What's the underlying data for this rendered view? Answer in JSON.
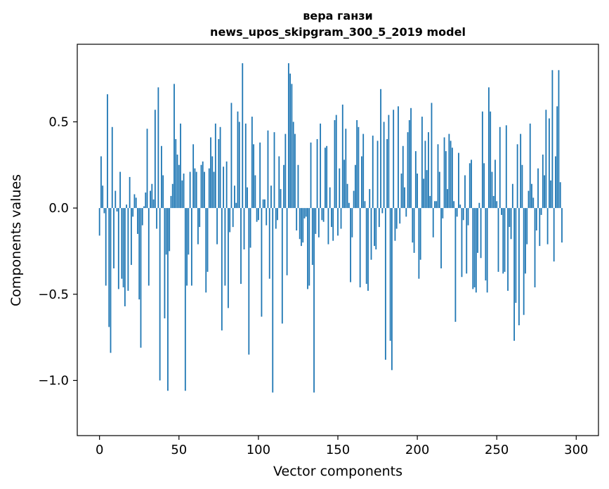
{
  "chart_data": {
    "type": "bar",
    "title_line1": "вера ганзи",
    "title_line2": "news_upos_skipgram_300_5_2019 model",
    "xlabel": "Vector components",
    "ylabel": "Components values",
    "xlim": [
      -14,
      314
    ],
    "ylim": [
      -1.32,
      0.95
    ],
    "xticks": [
      0,
      50,
      100,
      150,
      200,
      250,
      300
    ],
    "xtick_labels": [
      "0",
      "50",
      "100",
      "150",
      "200",
      "250",
      "300"
    ],
    "yticks": [
      -1.0,
      -0.5,
      0.0,
      0.5
    ],
    "ytick_labels": [
      "−1.0",
      "−0.5",
      "0.0",
      "0.5"
    ],
    "bar_color": "#1f77b4",
    "values": [
      -0.16,
      0.3,
      0.13,
      -0.03,
      -0.45,
      0.66,
      -0.69,
      -0.84,
      0.47,
      -0.35,
      0.1,
      -0.02,
      -0.47,
      0.21,
      -0.41,
      -0.46,
      -0.57,
      0.02,
      -0.48,
      0.18,
      -0.33,
      -0.05,
      0.08,
      0.06,
      -0.15,
      -0.53,
      -0.81,
      -0.1,
      0.01,
      0.09,
      0.46,
      -0.45,
      0.1,
      0.14,
      0.05,
      0.57,
      -0.12,
      0.7,
      -1.0,
      0.36,
      0.19,
      -0.64,
      -0.27,
      -1.06,
      -0.25,
      0.07,
      0.14,
      0.72,
      0.4,
      0.31,
      0.25,
      0.49,
      0.16,
      0.2,
      -1.06,
      -0.45,
      -0.27,
      0.21,
      -0.45,
      0.37,
      0.23,
      0.21,
      -0.21,
      -0.11,
      0.25,
      0.27,
      0.21,
      -0.49,
      -0.37,
      0.23,
      0.41,
      0.3,
      0.21,
      0.49,
      -0.21,
      0.4,
      0.47,
      -0.71,
      0.24,
      -0.45,
      0.27,
      -0.58,
      -0.14,
      0.61,
      -0.11,
      0.13,
      0.03,
      0.56,
      0.5,
      -0.44,
      0.84,
      -0.24,
      0.49,
      0.12,
      -0.85,
      -0.23,
      0.53,
      0.37,
      0.19,
      -0.08,
      -0.07,
      0.38,
      -0.63,
      0.05,
      0.05,
      -0.1,
      0.45,
      -0.41,
      0.13,
      -1.07,
      0.44,
      -0.12,
      -0.07,
      0.3,
      0.11,
      -0.67,
      0.25,
      0.43,
      -0.39,
      0.84,
      0.78,
      0.72,
      0.5,
      0.43,
      -0.13,
      0.25,
      -0.18,
      -0.22,
      -0.2,
      -0.06,
      -0.05,
      -0.47,
      -0.45,
      0.38,
      -0.33,
      -1.07,
      -0.15,
      0.4,
      -0.17,
      0.49,
      -0.07,
      -0.08,
      0.35,
      0.36,
      -0.21,
      0.12,
      -0.11,
      -0.19,
      0.51,
      0.54,
      -0.16,
      0.23,
      -0.12,
      0.6,
      0.28,
      0.46,
      0.14,
      0.03,
      -0.43,
      -0.17,
      0.1,
      0.25,
      0.51,
      0.47,
      -0.46,
      0.3,
      0.43,
      0.04,
      -0.44,
      -0.48,
      0.11,
      -0.3,
      0.42,
      -0.22,
      -0.24,
      0.39,
      -0.11,
      0.69,
      -0.03,
      0.5,
      -0.88,
      0.4,
      0.54,
      -0.77,
      -0.94,
      0.57,
      -0.19,
      -0.12,
      0.59,
      -0.09,
      0.2,
      0.36,
      0.12,
      -0.05,
      0.44,
      0.51,
      0.58,
      -0.2,
      -0.26,
      0.33,
      0.2,
      -0.41,
      -0.3,
      0.53,
      0.17,
      0.39,
      0.22,
      0.44,
      0.07,
      0.61,
      -0.17,
      0.04,
      0.04,
      0.37,
      0.21,
      -0.35,
      -0.06,
      0.41,
      0.33,
      0.11,
      0.43,
      0.39,
      0.35,
      0.04,
      -0.66,
      -0.05,
      0.32,
      0.02,
      -0.4,
      -0.07,
      0.19,
      -0.38,
      -0.1,
      0.26,
      0.28,
      -0.47,
      -0.46,
      -0.49,
      -0.26,
      0.03,
      -0.29,
      0.56,
      0.26,
      -0.42,
      -0.49,
      0.7,
      0.56,
      0.21,
      0.07,
      0.28,
      0.04,
      -0.37,
      0.47,
      -0.04,
      -0.38,
      -0.37,
      0.48,
      -0.48,
      -0.11,
      -0.18,
      0.14,
      -0.77,
      -0.55,
      0.37,
      -0.68,
      0.43,
      0.25,
      -0.62,
      -0.38,
      -0.21,
      0.1,
      0.49,
      0.14,
      0.06,
      -0.46,
      -0.13,
      0.23,
      -0.22,
      -0.04,
      0.31,
      0.19,
      0.57,
      -0.21,
      0.52,
      0.16,
      0.8,
      -0.31,
      0.3,
      0.59,
      0.8,
      0.15,
      -0.2
    ]
  }
}
